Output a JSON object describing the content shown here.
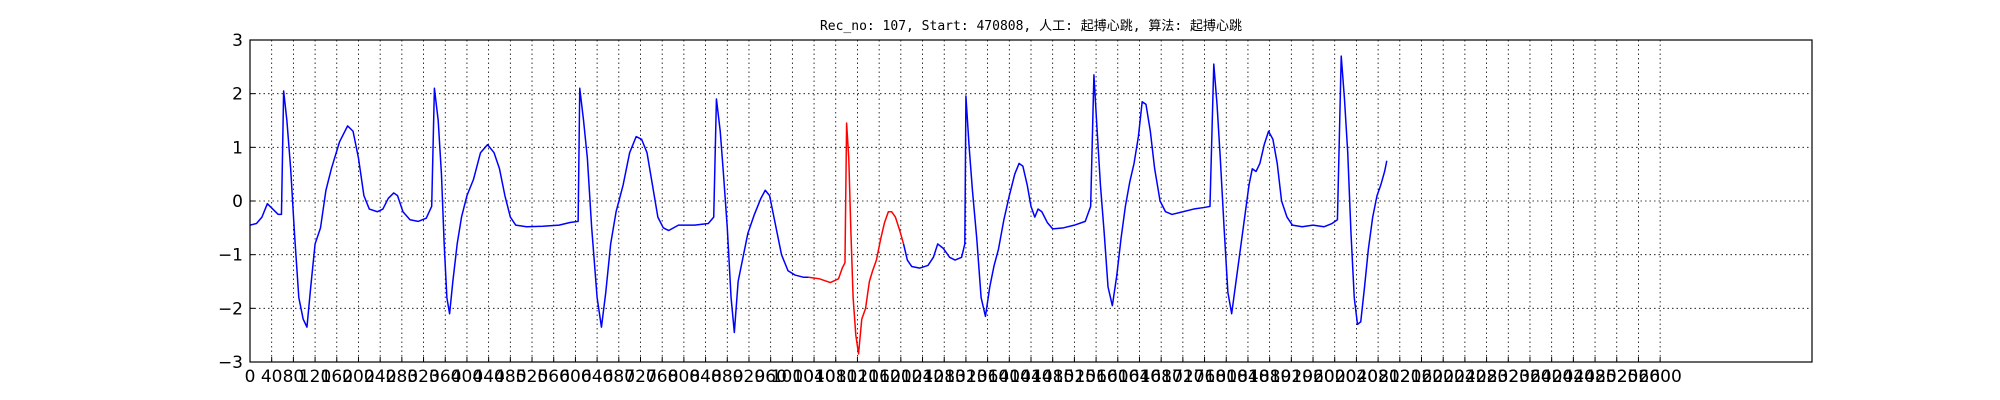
{
  "chart_data": {
    "type": "line",
    "title": "Rec_no: 107, Start: 470808, 人工: 起搏心跳, 算法: 起搏心跳",
    "xlabel": "",
    "ylabel": "",
    "xlim": [
      0,
      2880
    ],
    "ylim": [
      -3,
      3
    ],
    "grid": true,
    "x_ticks": [
      0,
      40,
      80,
      120,
      160,
      200,
      240,
      280,
      320,
      360,
      400,
      440,
      480,
      520,
      560,
      600,
      640,
      680,
      720,
      760,
      800,
      840,
      880,
      920,
      960,
      1000,
      1040,
      1080,
      1120,
      1160,
      1200,
      1240,
      1280,
      1320,
      1360,
      1400,
      1440,
      1480,
      1520,
      1560,
      1600,
      1640,
      1680,
      1720,
      1760,
      1800,
      1840,
      1880,
      1920,
      1960,
      2000,
      2040,
      2080,
      2120,
      2160,
      2200,
      2240,
      2280,
      2320,
      2360,
      2400,
      2440,
      2480,
      2520,
      2560,
      2600
    ],
    "x_tick_labels": [
      "0",
      "40",
      "80",
      "120",
      "160",
      "200",
      "240",
      "280",
      "320",
      "360",
      "400",
      "440",
      "480",
      "520",
      "560",
      "600",
      "640",
      "680",
      "720",
      "760",
      "800",
      "840",
      "880",
      "920",
      "960",
      "1000",
      "1040",
      "1080",
      "1120",
      "1160",
      "1200",
      "1240",
      "1280",
      "1320",
      "1360",
      "1400",
      "1440",
      "1480",
      "1520",
      "1560",
      "1600",
      "1640",
      "1680",
      "1720",
      "1760",
      "1800",
      "1840",
      "1880",
      "1920",
      "1960",
      "2000",
      "2040",
      "2080",
      "2120",
      "2160",
      "2200",
      "2240",
      "2280",
      "2320",
      "2360",
      "2400",
      "2440",
      "2480",
      "2520",
      "2560",
      "2600"
    ],
    "y_ticks": [
      -3,
      -2,
      -1,
      0,
      1,
      2,
      3
    ],
    "y_tick_labels": [
      "−3",
      "−2",
      "−1",
      "0",
      "1",
      "2",
      "3"
    ],
    "series": [
      {
        "color": "#0000ff",
        "points": [
          [
            0,
            -0.45
          ],
          [
            12,
            -0.42
          ],
          [
            22,
            -0.3
          ],
          [
            32,
            -0.05
          ],
          [
            42,
            -0.15
          ],
          [
            52,
            -0.25
          ],
          [
            58,
            -0.25
          ],
          [
            62,
            2.05
          ],
          [
            68,
            1.5
          ],
          [
            75,
            0.6
          ],
          [
            82,
            -0.6
          ],
          [
            90,
            -1.8
          ],
          [
            98,
            -2.2
          ],
          [
            105,
            -2.35
          ],
          [
            112,
            -1.6
          ],
          [
            120,
            -0.8
          ],
          [
            130,
            -0.5
          ],
          [
            140,
            0.2
          ],
          [
            150,
            0.6
          ],
          [
            165,
            1.1
          ],
          [
            180,
            1.4
          ],
          [
            190,
            1.3
          ],
          [
            200,
            0.8
          ],
          [
            210,
            0.1
          ],
          [
            220,
            -0.15
          ],
          [
            235,
            -0.2
          ],
          [
            245,
            -0.15
          ],
          [
            255,
            0.05
          ],
          [
            265,
            0.15
          ],
          [
            272,
            0.1
          ],
          [
            282,
            -0.2
          ],
          [
            295,
            -0.35
          ],
          [
            310,
            -0.38
          ],
          [
            325,
            -0.32
          ],
          [
            335,
            -0.1
          ],
          [
            340,
            2.1
          ],
          [
            347,
            1.5
          ],
          [
            353,
            0.5
          ],
          [
            358,
            -0.8
          ],
          [
            363,
            -1.8
          ],
          [
            368,
            -2.1
          ],
          [
            374,
            -1.5
          ],
          [
            382,
            -0.8
          ],
          [
            390,
            -0.3
          ],
          [
            400,
            0.1
          ],
          [
            412,
            0.4
          ],
          [
            425,
            0.9
          ],
          [
            438,
            1.05
          ],
          [
            450,
            0.9
          ],
          [
            460,
            0.6
          ],
          [
            470,
            0.1
          ],
          [
            480,
            -0.3
          ],
          [
            490,
            -0.45
          ],
          [
            510,
            -0.48
          ],
          [
            540,
            -0.47
          ],
          [
            570,
            -0.45
          ],
          [
            590,
            -0.4
          ],
          [
            605,
            -0.38
          ],
          [
            608,
            2.1
          ],
          [
            615,
            1.5
          ],
          [
            622,
            0.8
          ],
          [
            630,
            -0.5
          ],
          [
            640,
            -1.8
          ],
          [
            648,
            -2.35
          ],
          [
            656,
            -1.7
          ],
          [
            665,
            -0.8
          ],
          [
            675,
            -0.2
          ],
          [
            688,
            0.3
          ],
          [
            700,
            0.9
          ],
          [
            712,
            1.2
          ],
          [
            722,
            1.15
          ],
          [
            732,
            0.9
          ],
          [
            742,
            0.3
          ],
          [
            752,
            -0.3
          ],
          [
            762,
            -0.5
          ],
          [
            772,
            -0.55
          ],
          [
            790,
            -0.45
          ],
          [
            820,
            -0.45
          ],
          [
            845,
            -0.42
          ],
          [
            855,
            -0.3
          ],
          [
            860,
            1.9
          ],
          [
            867,
            1.3
          ],
          [
            873,
            0.5
          ],
          [
            880,
            -0.5
          ],
          [
            887,
            -1.8
          ],
          [
            893,
            -2.45
          ],
          [
            900,
            -1.5
          ],
          [
            908,
            -1.1
          ],
          [
            918,
            -0.6
          ],
          [
            930,
            -0.25
          ],
          [
            942,
            0.05
          ],
          [
            950,
            0.2
          ],
          [
            958,
            0.1
          ],
          [
            968,
            -0.4
          ],
          [
            980,
            -1.0
          ],
          [
            992,
            -1.3
          ],
          [
            1005,
            -1.38
          ],
          [
            1020,
            -1.42
          ],
          [
            1030,
            -1.42
          ]
        ]
      },
      {
        "color": "#ff0000",
        "points": [
          [
            1030,
            -1.42
          ],
          [
            1050,
            -1.45
          ],
          [
            1070,
            -1.52
          ],
          [
            1085,
            -1.45
          ],
          [
            1092,
            -1.25
          ],
          [
            1097,
            -1.15
          ],
          [
            1100,
            1.45
          ],
          [
            1104,
            0.8
          ],
          [
            1108,
            -0.6
          ],
          [
            1112,
            -1.8
          ],
          [
            1117,
            -2.5
          ],
          [
            1122,
            -2.85
          ],
          [
            1128,
            -2.2
          ],
          [
            1135,
            -2.0
          ],
          [
            1142,
            -1.5
          ],
          [
            1148,
            -1.3
          ],
          [
            1155,
            -1.1
          ],
          [
            1163,
            -0.7
          ],
          [
            1170,
            -0.4
          ],
          [
            1177,
            -0.2
          ],
          [
            1183,
            -0.2
          ],
          [
            1190,
            -0.3
          ],
          [
            1198,
            -0.55
          ],
          [
            1205,
            -0.8
          ]
        ]
      },
      {
        "color": "#0000ff",
        "points": [
          [
            1205,
            -0.8
          ],
          [
            1212,
            -1.1
          ],
          [
            1220,
            -1.22
          ],
          [
            1235,
            -1.25
          ],
          [
            1250,
            -1.2
          ],
          [
            1260,
            -1.05
          ],
          [
            1268,
            -0.8
          ],
          [
            1278,
            -0.88
          ],
          [
            1290,
            -1.05
          ],
          [
            1300,
            -1.1
          ],
          [
            1312,
            -1.05
          ],
          [
            1318,
            -0.8
          ],
          [
            1320,
            1.95
          ],
          [
            1326,
            1.0
          ],
          [
            1332,
            0.2
          ],
          [
            1340,
            -0.7
          ],
          [
            1348,
            -1.8
          ],
          [
            1356,
            -2.15
          ],
          [
            1364,
            -1.6
          ],
          [
            1372,
            -1.2
          ],
          [
            1380,
            -0.9
          ],
          [
            1390,
            -0.35
          ],
          [
            1400,
            0.1
          ],
          [
            1410,
            0.5
          ],
          [
            1418,
            0.7
          ],
          [
            1425,
            0.65
          ],
          [
            1433,
            0.3
          ],
          [
            1440,
            -0.1
          ],
          [
            1447,
            -0.3
          ],
          [
            1453,
            -0.15
          ],
          [
            1460,
            -0.2
          ],
          [
            1470,
            -0.4
          ],
          [
            1480,
            -0.52
          ],
          [
            1500,
            -0.5
          ],
          [
            1520,
            -0.45
          ],
          [
            1540,
            -0.38
          ],
          [
            1550,
            -0.1
          ],
          [
            1556,
            2.35
          ],
          [
            1562,
            1.3
          ],
          [
            1568,
            0.3
          ],
          [
            1575,
            -0.6
          ],
          [
            1582,
            -1.6
          ],
          [
            1590,
            -1.95
          ],
          [
            1598,
            -1.4
          ],
          [
            1606,
            -0.7
          ],
          [
            1614,
            -0.1
          ],
          [
            1622,
            0.35
          ],
          [
            1630,
            0.7
          ],
          [
            1638,
            1.2
          ],
          [
            1645,
            1.85
          ],
          [
            1652,
            1.8
          ],
          [
            1660,
            1.3
          ],
          [
            1668,
            0.6
          ],
          [
            1678,
            0.0
          ],
          [
            1688,
            -0.2
          ],
          [
            1700,
            -0.25
          ],
          [
            1720,
            -0.2
          ],
          [
            1740,
            -0.15
          ],
          [
            1760,
            -0.12
          ],
          [
            1770,
            -0.1
          ],
          [
            1777,
            2.55
          ],
          [
            1783,
            1.8
          ],
          [
            1789,
            0.8
          ],
          [
            1796,
            -0.5
          ],
          [
            1803,
            -1.7
          ],
          [
            1810,
            -2.1
          ],
          [
            1818,
            -1.5
          ],
          [
            1826,
            -0.9
          ],
          [
            1834,
            -0.3
          ],
          [
            1842,
            0.3
          ],
          [
            1848,
            0.6
          ],
          [
            1855,
            0.55
          ],
          [
            1862,
            0.7
          ],
          [
            1870,
            1.05
          ],
          [
            1878,
            1.3
          ],
          [
            1886,
            1.15
          ],
          [
            1894,
            0.7
          ],
          [
            1902,
            0.0
          ],
          [
            1912,
            -0.3
          ],
          [
            1922,
            -0.45
          ],
          [
            1940,
            -0.48
          ],
          [
            1960,
            -0.45
          ],
          [
            1980,
            -0.48
          ],
          [
            1995,
            -0.42
          ],
          [
            2005,
            -0.35
          ],
          [
            2012,
            2.7
          ],
          [
            2018,
            1.9
          ],
          [
            2024,
            0.9
          ],
          [
            2030,
            -0.6
          ],
          [
            2036,
            -1.8
          ],
          [
            2042,
            -2.3
          ],
          [
            2048,
            -2.25
          ],
          [
            2055,
            -1.6
          ],
          [
            2062,
            -0.9
          ],
          [
            2070,
            -0.3
          ],
          [
            2078,
            0.1
          ],
          [
            2085,
            0.3
          ],
          [
            2092,
            0.55
          ],
          [
            2096,
            0.75
          ]
        ]
      }
    ]
  }
}
